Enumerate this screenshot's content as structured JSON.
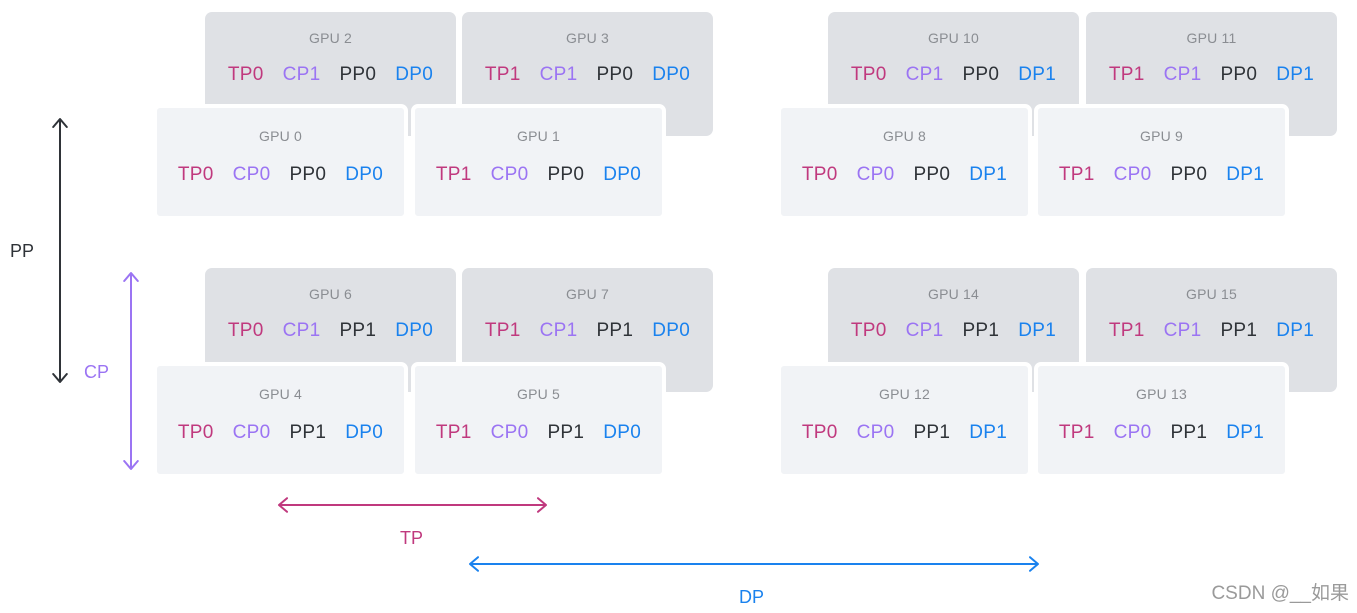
{
  "colors": {
    "tp": "#c0397e",
    "cp": "#9b74f3",
    "pp": "#2f3338",
    "dp": "#1a82ee",
    "back_card": "#dfe1e5",
    "front_card": "#f1f3f6"
  },
  "gpus": [
    {
      "label": "GPU 0",
      "tags": [
        "TP0",
        "CP0",
        "PP0",
        "DP0"
      ],
      "layer": "front"
    },
    {
      "label": "GPU 1",
      "tags": [
        "TP1",
        "CP0",
        "PP0",
        "DP0"
      ],
      "layer": "front"
    },
    {
      "label": "GPU 2",
      "tags": [
        "TP0",
        "CP1",
        "PP0",
        "DP0"
      ],
      "layer": "back"
    },
    {
      "label": "GPU 3",
      "tags": [
        "TP1",
        "CP1",
        "PP0",
        "DP0"
      ],
      "layer": "back"
    },
    {
      "label": "GPU 4",
      "tags": [
        "TP0",
        "CP0",
        "PP1",
        "DP0"
      ],
      "layer": "front"
    },
    {
      "label": "GPU 5",
      "tags": [
        "TP1",
        "CP0",
        "PP1",
        "DP0"
      ],
      "layer": "front"
    },
    {
      "label": "GPU 6",
      "tags": [
        "TP0",
        "CP1",
        "PP1",
        "DP0"
      ],
      "layer": "back"
    },
    {
      "label": "GPU 7",
      "tags": [
        "TP1",
        "CP1",
        "PP1",
        "DP0"
      ],
      "layer": "back"
    },
    {
      "label": "GPU 8",
      "tags": [
        "TP0",
        "CP0",
        "PP0",
        "DP1"
      ],
      "layer": "front"
    },
    {
      "label": "GPU 9",
      "tags": [
        "TP1",
        "CP0",
        "PP0",
        "DP1"
      ],
      "layer": "front"
    },
    {
      "label": "GPU 10",
      "tags": [
        "TP0",
        "CP1",
        "PP0",
        "DP1"
      ],
      "layer": "back"
    },
    {
      "label": "GPU 11",
      "tags": [
        "TP1",
        "CP1",
        "PP0",
        "DP1"
      ],
      "layer": "back"
    },
    {
      "label": "GPU 12",
      "tags": [
        "TP0",
        "CP0",
        "PP1",
        "DP1"
      ],
      "layer": "front"
    },
    {
      "label": "GPU 13",
      "tags": [
        "TP1",
        "CP0",
        "PP1",
        "DP1"
      ],
      "layer": "front"
    },
    {
      "label": "GPU 14",
      "tags": [
        "TP0",
        "CP1",
        "PP1",
        "DP1"
      ],
      "layer": "back"
    },
    {
      "label": "GPU 15",
      "tags": [
        "TP1",
        "CP1",
        "PP1",
        "DP1"
      ],
      "layer": "back"
    }
  ],
  "axes": {
    "pp": "PP",
    "cp": "CP",
    "tp": "TP",
    "dp": "DP"
  },
  "watermark": "CSDN @__如果"
}
